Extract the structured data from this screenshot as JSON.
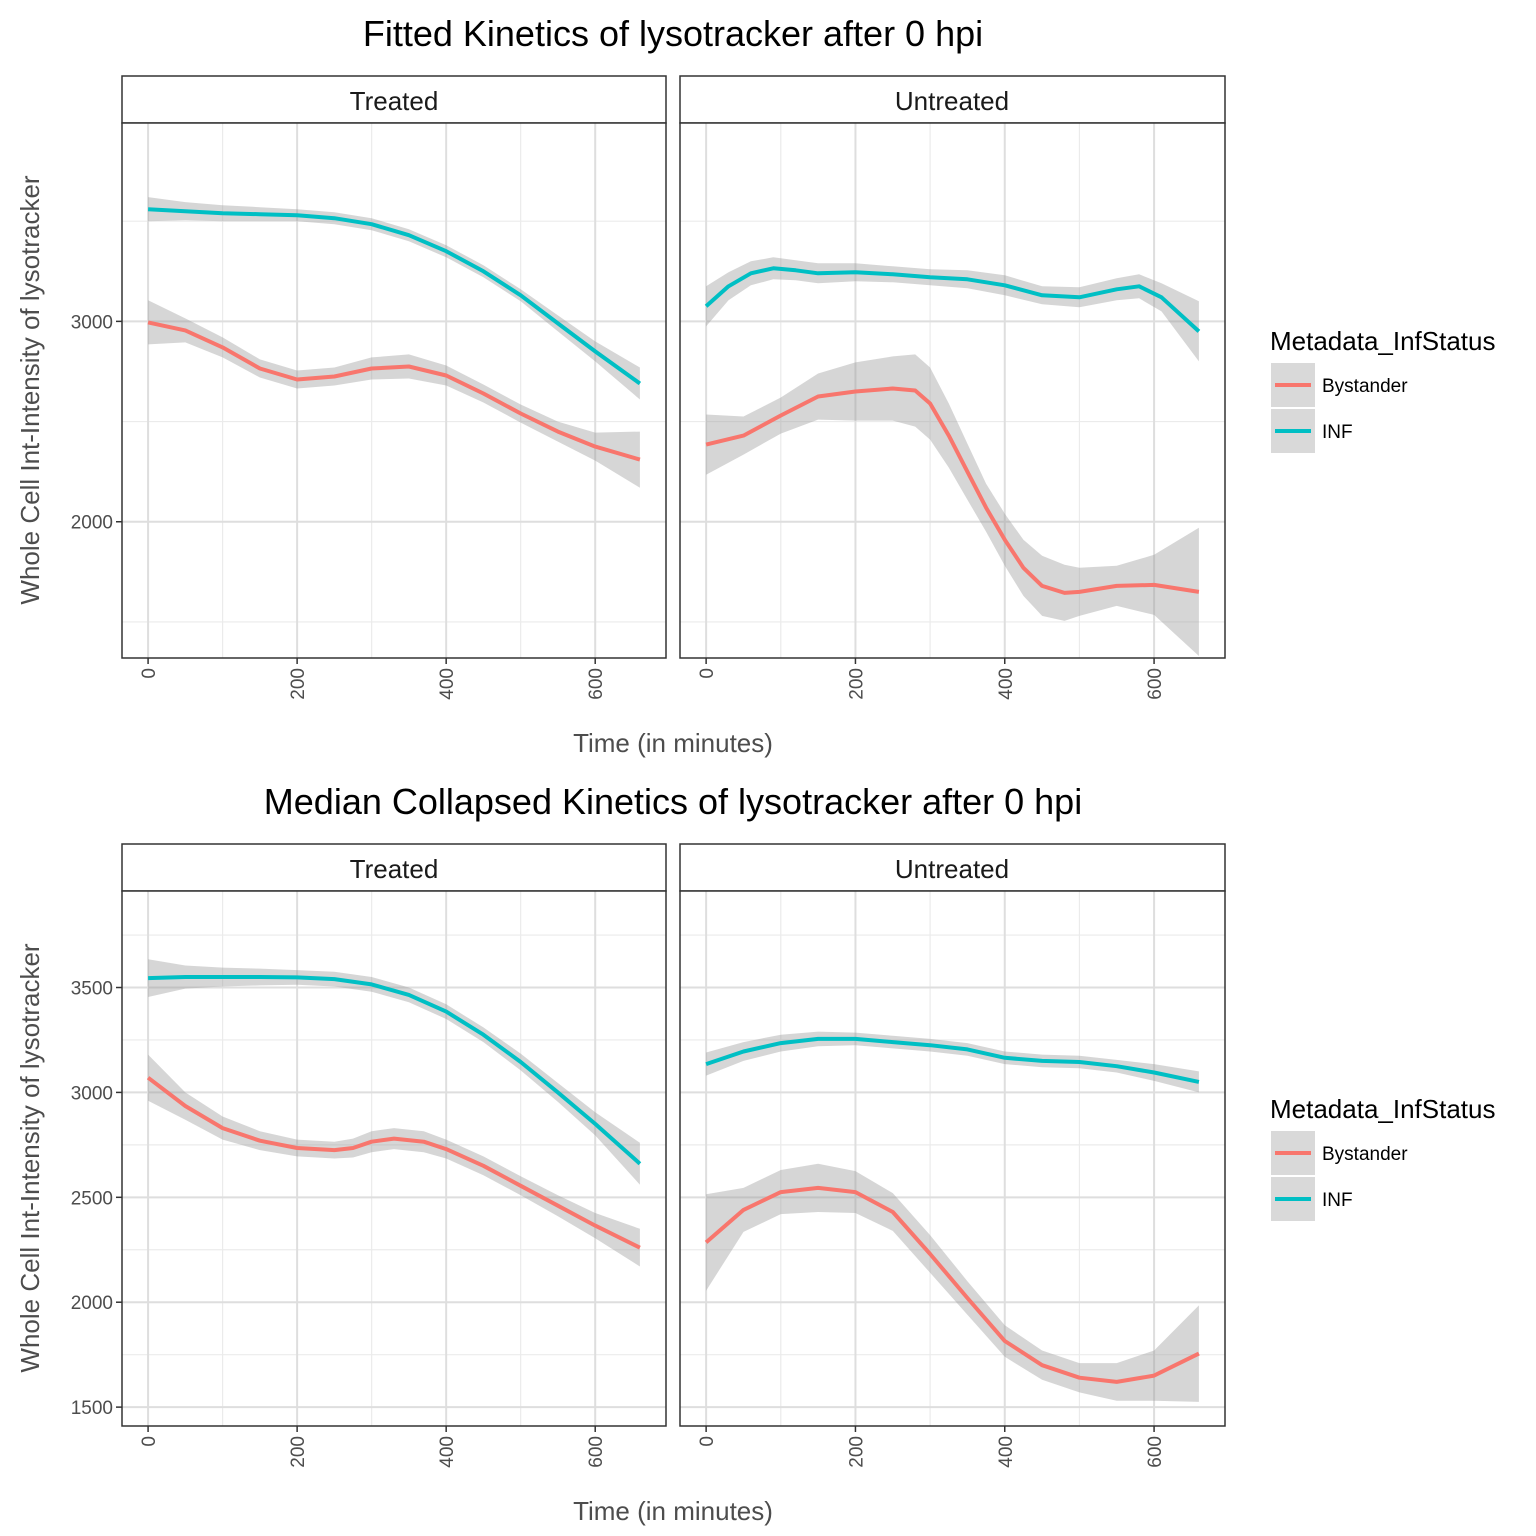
{
  "chart_data": [
    {
      "type": "line",
      "title": "Fitted Kinetics of lysotracker after 0 hpi",
      "xlabel": "Time (in minutes)",
      "ylabel": "Whole Cell Int-Intensity of lysotracker",
      "xlim": [
        -35,
        695
      ],
      "ylim": [
        1320,
        3990
      ],
      "xticks": [
        "0",
        "200",
        "400",
        "600"
      ],
      "yticks": [
        "2000",
        "3000"
      ],
      "ytick_values": [
        2000,
        3000
      ],
      "ygrid_minor": [
        1500,
        2500,
        3500
      ],
      "grid": true,
      "legend": {
        "title": "Metadata_InfStatus",
        "position": "right",
        "entries": [
          "Bystander",
          "INF"
        ]
      },
      "panels": [
        {
          "label": "Treated",
          "series": [
            {
              "name": "INF",
              "color": "#00BFC4",
              "x": [
                0,
                50,
                100,
                150,
                200,
                250,
                300,
                350,
                400,
                450,
                500,
                550,
                600,
                660
              ],
              "y": [
                3560,
                3550,
                3540,
                3535,
                3530,
                3515,
                3485,
                3430,
                3350,
                3250,
                3130,
                2990,
                2850,
                2690
              ],
              "band": [
                60,
                45,
                40,
                35,
                30,
                30,
                30,
                30,
                30,
                30,
                30,
                40,
                50,
                80
              ]
            },
            {
              "name": "Bystander",
              "color": "#F8766D",
              "x": [
                0,
                50,
                100,
                150,
                200,
                250,
                300,
                350,
                400,
                450,
                500,
                550,
                600,
                660
              ],
              "y": [
                2995,
                2955,
                2870,
                2765,
                2710,
                2725,
                2765,
                2775,
                2730,
                2640,
                2540,
                2450,
                2375,
                2310
              ],
              "band": [
                110,
                60,
                50,
                45,
                45,
                45,
                55,
                60,
                50,
                45,
                45,
                50,
                70,
                140
              ]
            }
          ]
        },
        {
          "label": "Untreated",
          "series": [
            {
              "name": "INF",
              "color": "#00BFC4",
              "x": [
                0,
                30,
                60,
                90,
                120,
                150,
                200,
                250,
                300,
                350,
                400,
                450,
                500,
                550,
                580,
                610,
                660
              ],
              "y": [
                3075,
                3175,
                3240,
                3265,
                3255,
                3240,
                3245,
                3235,
                3220,
                3210,
                3180,
                3130,
                3120,
                3160,
                3175,
                3120,
                2950
              ],
              "band": [
                100,
                70,
                60,
                55,
                50,
                50,
                45,
                40,
                40,
                45,
                50,
                45,
                50,
                55,
                60,
                70,
                150
              ]
            },
            {
              "name": "Bystander",
              "color": "#F8766D",
              "x": [
                0,
                50,
                100,
                150,
                200,
                250,
                280,
                300,
                325,
                350,
                375,
                400,
                425,
                450,
                480,
                500,
                550,
                600,
                660
              ],
              "y": [
                2385,
                2430,
                2530,
                2625,
                2650,
                2665,
                2655,
                2590,
                2430,
                2250,
                2070,
                1910,
                1770,
                1680,
                1645,
                1650,
                1680,
                1685,
                1650
              ],
              "band": [
                150,
                95,
                90,
                115,
                145,
                160,
                180,
                180,
                160,
                140,
                120,
                130,
                140,
                150,
                140,
                120,
                100,
                150,
                320
              ]
            }
          ]
        }
      ]
    },
    {
      "type": "line",
      "title": "Median Collapsed Kinetics of lysotracker after 0 hpi",
      "xlabel": "Time (in minutes)",
      "ylabel": "Whole Cell Int-Intensity of lysotracker",
      "xlim": [
        -35,
        695
      ],
      "ylim": [
        1410,
        3960
      ],
      "xticks": [
        "0",
        "200",
        "400",
        "600"
      ],
      "yticks": [
        "1500",
        "2000",
        "2500",
        "3000",
        "3500"
      ],
      "ytick_values": [
        1500,
        2000,
        2500,
        3000,
        3500
      ],
      "ygrid_minor": [
        1750,
        2250,
        2750,
        3250,
        3750
      ],
      "grid": true,
      "legend": {
        "title": "Metadata_InfStatus",
        "position": "right",
        "entries": [
          "Bystander",
          "INF"
        ]
      },
      "panels": [
        {
          "label": "Treated",
          "series": [
            {
              "name": "INF",
              "color": "#00BFC4",
              "x": [
                0,
                50,
                100,
                150,
                200,
                250,
                300,
                350,
                400,
                450,
                500,
                550,
                600,
                660
              ],
              "y": [
                3545,
                3550,
                3550,
                3550,
                3548,
                3540,
                3515,
                3465,
                3385,
                3275,
                3145,
                3000,
                2850,
                2660
              ],
              "band": [
                90,
                55,
                45,
                40,
                35,
                35,
                35,
                35,
                35,
                35,
                40,
                45,
                55,
                100
              ]
            },
            {
              "name": "Bystander",
              "color": "#F8766D",
              "x": [
                0,
                50,
                100,
                150,
                200,
                250,
                275,
                300,
                330,
                370,
                400,
                450,
                500,
                550,
                600,
                660
              ],
              "y": [
                3070,
                2935,
                2830,
                2770,
                2735,
                2725,
                2735,
                2765,
                2780,
                2765,
                2730,
                2650,
                2555,
                2460,
                2365,
                2260
              ],
              "band": [
                110,
                65,
                55,
                45,
                40,
                40,
                45,
                50,
                50,
                50,
                45,
                45,
                45,
                50,
                60,
                90
              ]
            }
          ]
        },
        {
          "label": "Untreated",
          "series": [
            {
              "name": "INF",
              "color": "#00BFC4",
              "x": [
                0,
                50,
                100,
                150,
                200,
                250,
                300,
                350,
                400,
                450,
                500,
                550,
                600,
                660
              ],
              "y": [
                3135,
                3195,
                3235,
                3255,
                3255,
                3240,
                3225,
                3205,
                3165,
                3150,
                3145,
                3125,
                3095,
                3050
              ],
              "band": [
                55,
                45,
                40,
                35,
                30,
                30,
                30,
                30,
                30,
                30,
                30,
                30,
                40,
                50
              ]
            },
            {
              "name": "Bystander",
              "color": "#F8766D",
              "x": [
                0,
                50,
                100,
                150,
                200,
                250,
                300,
                350,
                400,
                450,
                500,
                550,
                600,
                660
              ],
              "y": [
                2285,
                2440,
                2525,
                2545,
                2525,
                2430,
                2230,
                2020,
                1815,
                1700,
                1640,
                1620,
                1650,
                1755
              ],
              "band": [
                230,
                105,
                105,
                115,
                100,
                90,
                90,
                80,
                75,
                70,
                70,
                90,
                120,
                230
              ]
            }
          ]
        }
      ]
    }
  ]
}
